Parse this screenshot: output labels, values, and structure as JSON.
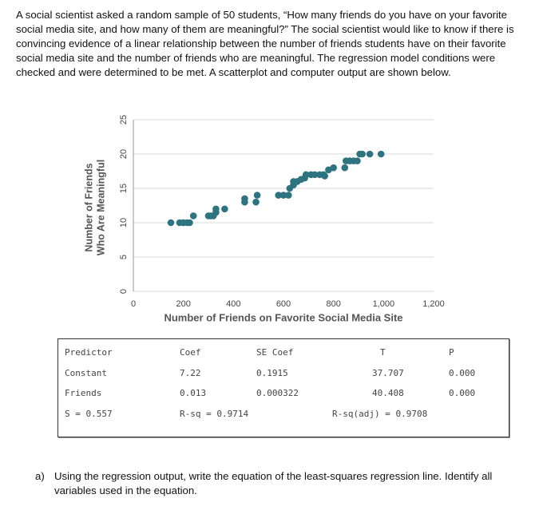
{
  "intro": "A social scientist asked a random sample of 50 students, “How many friends do you have on your favorite social media site, and how many of them are meaningful?” The social scientist would like to know if there is convincing evidence of a linear relationship between the number of friends students have on their favorite social media site and the number of friends who are meaningful. The regression model conditions were checked and were determined to be met. A scatterplot and computer output are shown below.",
  "chart_data": {
    "type": "scatter",
    "color": "#2e7480",
    "grid": true,
    "xlabel": "Number of Friends on Favorite Social Media Site",
    "ylabel": [
      "Number of Friends",
      "Who Are Meaningful"
    ],
    "xlim": [
      0,
      1200
    ],
    "xticks": [
      0,
      200,
      400,
      600,
      800,
      {
        "value": 1000,
        "label": "1,000"
      },
      {
        "value": 1200,
        "label": "1,200"
      }
    ],
    "ylim": [
      0,
      25
    ],
    "yticks": [
      0,
      5,
      10,
      15,
      20,
      25
    ],
    "x": [
      150,
      185,
      200,
      215,
      225,
      240,
      300,
      310,
      320,
      330,
      330,
      365,
      445,
      445,
      490,
      495,
      580,
      600,
      620,
      625,
      640,
      640,
      655,
      670,
      685,
      690,
      710,
      725,
      745,
      760,
      765,
      780,
      800,
      845,
      850,
      865,
      880,
      895,
      905,
      915,
      945,
      990
    ],
    "values": [
      10,
      10,
      10,
      10,
      10,
      11,
      11,
      11,
      11,
      12,
      11.5,
      12,
      13,
      13.5,
      13,
      14,
      14,
      14,
      14,
      15,
      16,
      15.5,
      16,
      16.3,
      16.5,
      17,
      17,
      17,
      17,
      17,
      16.8,
      17.7,
      18,
      18,
      19,
      19,
      19,
      19,
      20,
      20,
      20,
      20
    ]
  },
  "table": {
    "header": [
      "Predictor",
      "Coef",
      "SE Coef",
      "T",
      "P"
    ],
    "rows": [
      [
        "Constant",
        "7.22",
        "0.1915",
        "37.707",
        "0.000"
      ],
      [
        "Friends",
        "0.013",
        "0.000322",
        "40.408",
        "0.000"
      ]
    ],
    "footer": [
      "S = 0.557",
      "R-sq = 0.9714",
      "R-sq(adj) = 0.9708"
    ]
  },
  "question": {
    "label": "a)",
    "text": "Using the regression output, write the equation of the least-squares regression line. Identify all variables used in the equation."
  }
}
